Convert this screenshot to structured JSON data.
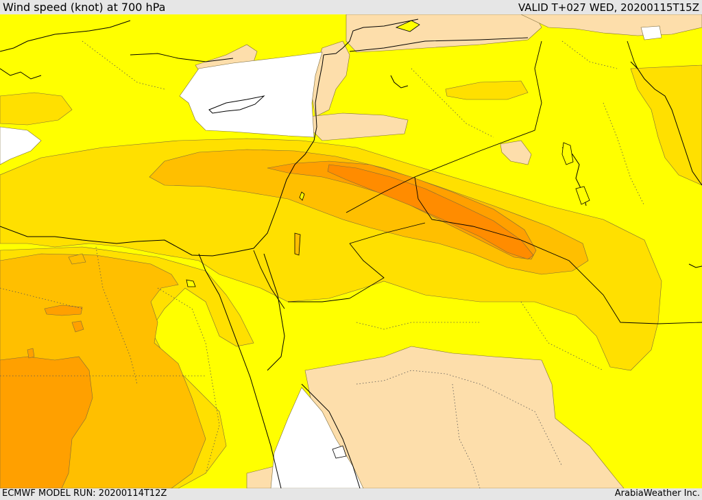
{
  "header": {
    "title": "Wind speed (knot) at 700 hPa",
    "valid_time": "VALID T+027 WED, 20200115T15Z"
  },
  "footer": {
    "model_run": "ECMWF MODEL RUN: 20200114T12Z",
    "provider": "ArabiaWeather Inc."
  },
  "map": {
    "field": "wind speed at 700 hPa",
    "fill_colors": {
      "very_low": "#ffffff",
      "low": "#fddeab",
      "moderate": "#ffff00",
      "elevated": "#ffe000",
      "high": "#ffbf00",
      "very_high": "#ffa000",
      "extreme": "#ff8c00"
    },
    "coastline_color": "#000000",
    "border_style": "dotted"
  }
}
